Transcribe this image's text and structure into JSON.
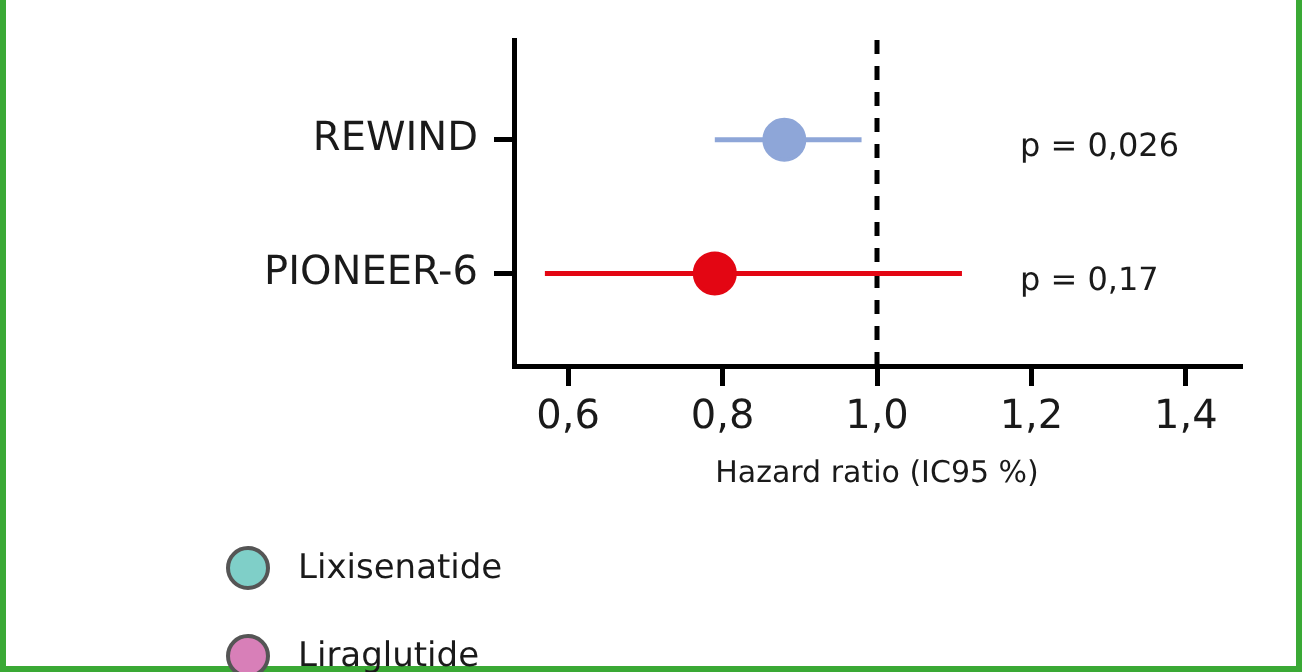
{
  "chart_data": {
    "type": "scatter",
    "orientation": "horizontal",
    "categories": [
      "REWIND",
      "PIONEER-6"
    ],
    "series": [
      {
        "color": "#8ea6d8",
        "values": [
          0.88,
          null
        ],
        "errors": [
          [
            0.79,
            0.98
          ],
          null
        ]
      },
      {
        "color": "#e30613",
        "values": [
          null,
          0.79
        ],
        "errors": [
          null,
          [
            0.57,
            1.11
          ]
        ]
      },
      {
        "name": "Lixisenatide",
        "color": "#7fcfc8",
        "values": [
          null,
          null
        ]
      },
      {
        "name": "Liraglutide",
        "color": "#d87fb8",
        "values": [
          null,
          null
        ]
      }
    ],
    "xlim": [
      0.53,
      1.47
    ],
    "xticks": [
      {
        "value": 0.6,
        "label": "0,6"
      },
      {
        "value": 0.8,
        "label": "0,8"
      },
      {
        "value": 1.0,
        "label": "1,0"
      },
      {
        "value": 1.2,
        "label": "1,2"
      },
      {
        "value": 1.4,
        "label": "1,4"
      }
    ],
    "xlabel": "Hazard ratio (IC95 %)",
    "ref_lines": [
      {
        "axis": "x",
        "value": 1.0,
        "color": "#000000",
        "line_style": "dashed"
      }
    ],
    "annotations": [
      "p = 0,026",
      "p = 0,17"
    ],
    "marker": "circle",
    "legend": "bottom left",
    "grid": false
  }
}
